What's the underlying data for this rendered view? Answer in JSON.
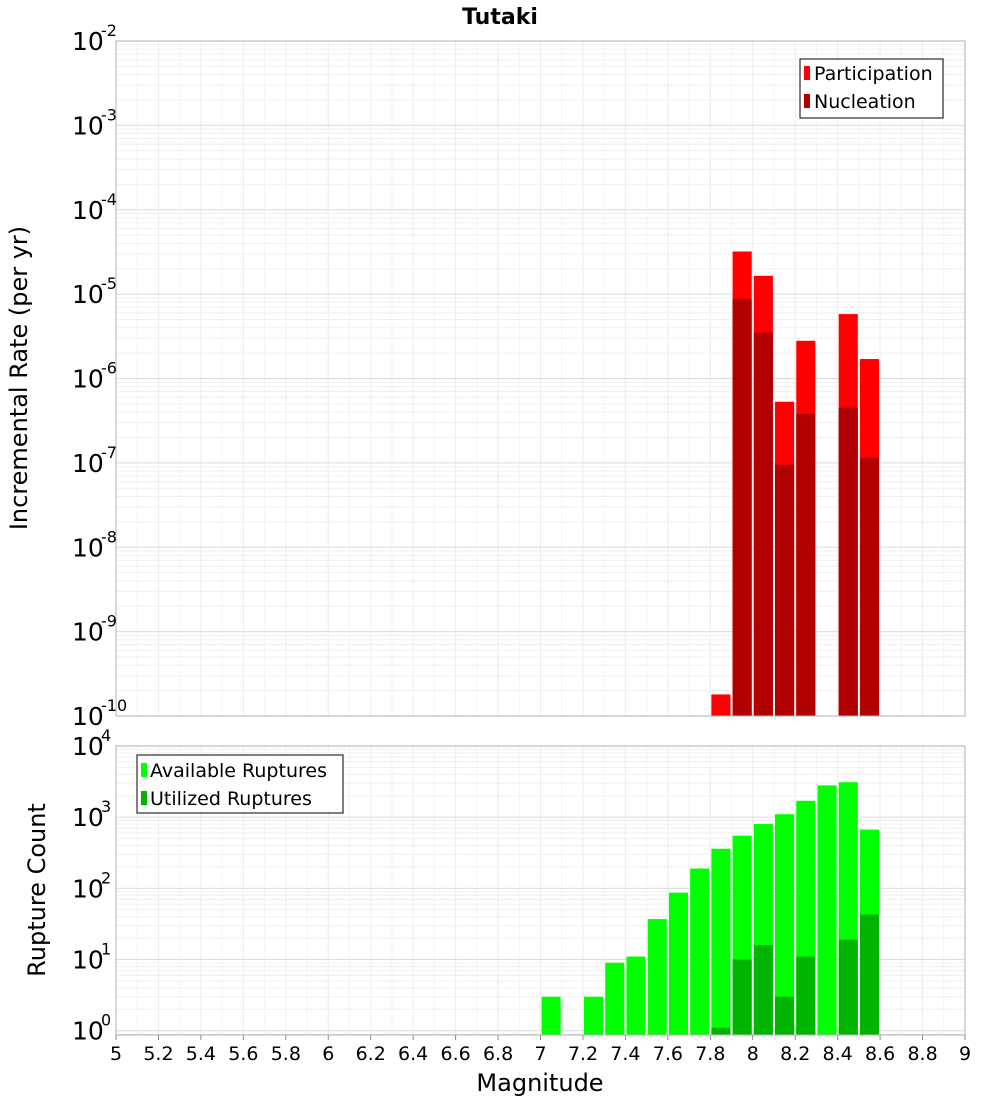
{
  "chart_data": [
    {
      "type": "bar",
      "title": "Tutaki",
      "xlabel": "Magnitude",
      "ylabel": "Incremental Rate (per yr)",
      "yscale": "log",
      "ylim_exp": [
        -10,
        -2
      ],
      "xlim": [
        5,
        9
      ],
      "ytick_base": "10",
      "ytick_exponents": [
        "-10",
        "-9",
        "-8",
        "-7",
        "-6",
        "-5",
        "-4",
        "-3",
        "-2"
      ],
      "legend_position": "top-right",
      "series": [
        {
          "name": "Participation",
          "color": "#ff0000",
          "x": [
            7.85,
            7.95,
            8.05,
            8.15,
            8.25,
            8.45,
            8.55
          ],
          "values": [
            1.8e-10,
            3.2e-05,
            1.65e-05,
            5.3e-07,
            2.8e-06,
            5.8e-06,
            1.7e-06
          ]
        },
        {
          "name": "Nucleation",
          "color": "#b20000",
          "x": [
            7.95,
            8.05,
            8.15,
            8.25,
            8.45,
            8.55
          ],
          "values": [
            8.8e-06,
            3.5e-06,
            9.5e-08,
            3.8e-07,
            4.5e-07,
            1.15e-07
          ]
        }
      ]
    },
    {
      "type": "bar",
      "title": "",
      "xlabel": "Magnitude",
      "ylabel": "Rupture Count",
      "yscale": "log",
      "ylim_exp": [
        -0.06,
        4
      ],
      "xlim": [
        5,
        9
      ],
      "ytick_base": "10",
      "ytick_exponents": [
        "0",
        "1",
        "2",
        "3",
        "4"
      ],
      "legend_position": "top-left",
      "series": [
        {
          "name": "Available Ruptures",
          "color": "#00ff00",
          "x": [
            7.05,
            7.25,
            7.35,
            7.45,
            7.55,
            7.65,
            7.75,
            7.85,
            7.95,
            8.05,
            8.15,
            8.25,
            8.35,
            8.45,
            8.55
          ],
          "values": [
            3,
            3,
            9,
            11,
            37,
            87,
            190,
            360,
            550,
            800,
            1100,
            1700,
            2800,
            3100,
            670
          ]
        },
        {
          "name": "Utilized Ruptures",
          "color": "#00b400",
          "x": [
            7.85,
            7.95,
            8.05,
            8.15,
            8.25,
            8.45,
            8.55
          ],
          "values": [
            1.1,
            10,
            16,
            3,
            11,
            19,
            43
          ]
        }
      ]
    }
  ],
  "x_ticks": [
    "5",
    "5.2",
    "5.4",
    "5.6",
    "5.8",
    "6",
    "6.2",
    "6.4",
    "6.6",
    "6.8",
    "7",
    "7.2",
    "7.4",
    "7.6",
    "7.8",
    "8",
    "8.2",
    "8.4",
    "8.6",
    "8.8",
    "9"
  ]
}
